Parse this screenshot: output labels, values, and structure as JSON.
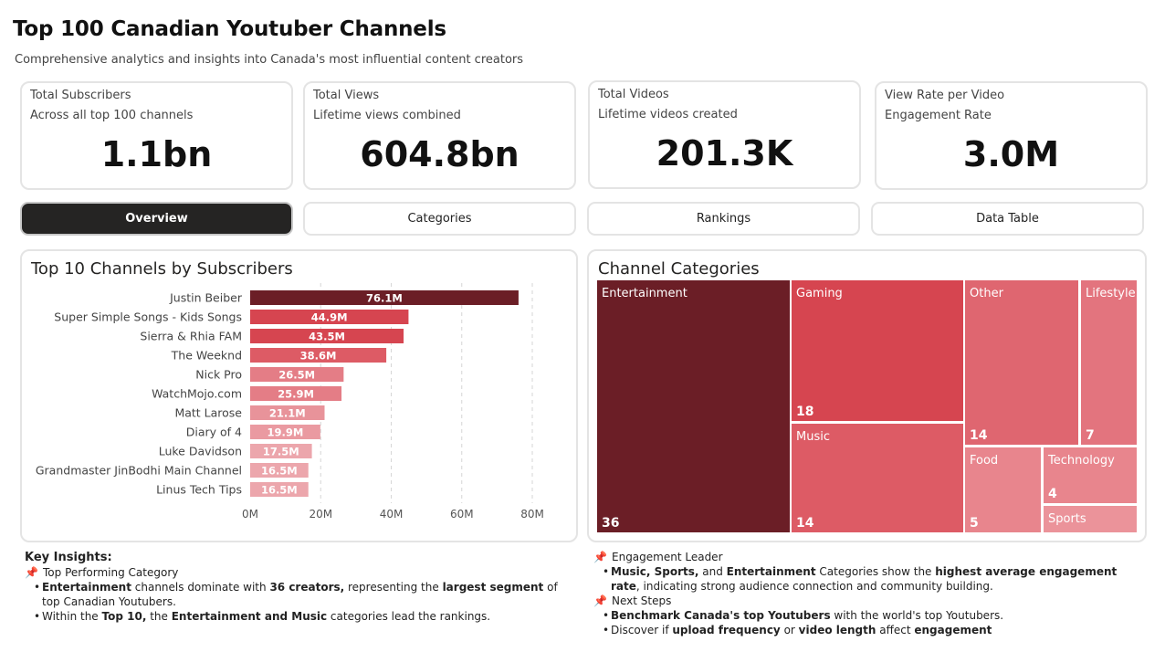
{
  "header": {
    "title": "Top 100 Canadian Youtuber Channels",
    "subtitle": "Comprehensive analytics and insights into Canada's most influential content creators"
  },
  "kpis": [
    {
      "label": "Total Subscribers",
      "sub": "Across all top 100 channels",
      "value": "1.1bn"
    },
    {
      "label": "Total Views",
      "sub": "Lifetime views combined",
      "value": "604.8bn"
    },
    {
      "label": "Total Videos",
      "sub": "Lifetime videos created",
      "value": "201.3K"
    },
    {
      "label": "View Rate per Video",
      "sub": "Engagement Rate",
      "value": "3.0M"
    }
  ],
  "tabs": [
    {
      "label": "Overview",
      "active": true
    },
    {
      "label": "Categories",
      "active": false
    },
    {
      "label": "Rankings",
      "active": false
    },
    {
      "label": "Data Table",
      "active": false
    }
  ],
  "bar_panel": {
    "title": "Top 10 Channels by Subscribers"
  },
  "treemap_panel": {
    "title": "Channel Categories"
  },
  "chart_data": [
    {
      "type": "bar",
      "orientation": "horizontal",
      "title": "Top 10 Channels by Subscribers",
      "categories": [
        "Justin Beiber",
        "Super Simple Songs - Kids Songs",
        "Sierra & Rhia FAM",
        "The Weeknd",
        "Nick Pro",
        "WatchMojo.com",
        "Matt Larose",
        "Diary of 4",
        "Luke Davidson",
        "Grandmaster JinBodhi Main Channel",
        "Linus Tech Tips"
      ],
      "values": [
        76.1,
        44.9,
        43.5,
        38.6,
        26.5,
        25.9,
        21.1,
        19.9,
        17.5,
        16.5,
        16.5
      ],
      "value_labels": [
        "76.1M",
        "44.9M",
        "43.5M",
        "38.6M",
        "26.5M",
        "25.9M",
        "21.1M",
        "19.9M",
        "17.5M",
        "16.5M",
        "16.5M"
      ],
      "unit": "M",
      "xlim": [
        0,
        80
      ],
      "xticks": [
        0,
        20,
        40,
        60,
        80
      ],
      "xtick_labels": [
        "0M",
        "20M",
        "40M",
        "60M",
        "80M"
      ],
      "grid": "vertical dashed",
      "colors": [
        "#6b1e26",
        "#d64550",
        "#d64550",
        "#dd5b65",
        "#e47d86",
        "#e47d86",
        "#e8939a",
        "#ea9aa1",
        "#eca6ac",
        "#eca6ac",
        "#eca6ac"
      ]
    },
    {
      "type": "treemap",
      "title": "Channel Categories",
      "items": [
        {
          "name": "Entertainment",
          "value": 36,
          "color": "#6b1e26"
        },
        {
          "name": "Gaming",
          "value": 18,
          "color": "#d64550"
        },
        {
          "name": "Music",
          "value": 14,
          "color": "#dd5b65"
        },
        {
          "name": "Other",
          "value": 14,
          "color": "#df6670"
        },
        {
          "name": "Lifestyle",
          "value": 7,
          "color": "#e3747e"
        },
        {
          "name": "Food",
          "value": 5,
          "color": "#e8858d"
        },
        {
          "name": "Technology",
          "value": 4,
          "color": "#e8858d"
        },
        {
          "name": "Sports",
          "value": null,
          "color": "#eb939a"
        }
      ]
    }
  ],
  "insights_left": {
    "heading": "Key Insights:",
    "section_title": "Top Performing Category",
    "bullets": [
      [
        {
          "t": "Entertainment",
          "b": true
        },
        {
          "t": " channels dominate with ",
          "b": false
        },
        {
          "t": "36 creators,",
          "b": true
        },
        {
          "t": " representing the ",
          "b": false
        },
        {
          "t": "largest segment",
          "b": true
        },
        {
          "t": " of top Canadian Youtubers.",
          "b": false
        }
      ],
      [
        {
          "t": "Within the ",
          "b": false
        },
        {
          "t": "Top 10,",
          "b": true
        },
        {
          "t": " the ",
          "b": false
        },
        {
          "t": "Entertainment and Music",
          "b": true
        },
        {
          "t": " categories lead the rankings.",
          "b": false
        }
      ]
    ]
  },
  "insights_right": {
    "sections": [
      {
        "title": "Engagement Leader",
        "bullets": [
          [
            {
              "t": "Music, Sports,",
              "b": true
            },
            {
              "t": " and ",
              "b": false
            },
            {
              "t": "Entertainment",
              "b": true
            },
            {
              "t": " Categories show the ",
              "b": false
            },
            {
              "t": "highest average engagement rate",
              "b": true
            },
            {
              "t": ", indicating strong audience connection and community building.",
              "b": false
            }
          ]
        ]
      },
      {
        "title": "Next Steps",
        "bullets": [
          [
            {
              "t": "Benchmark Canada's top Youtubers",
              "b": true
            },
            {
              "t": " with the world's top Youtubers.",
              "b": false
            }
          ],
          [
            {
              "t": "Discover if ",
              "b": false
            },
            {
              "t": "upload frequency",
              "b": true
            },
            {
              "t": " or ",
              "b": false
            },
            {
              "t": "video length",
              "b": true
            },
            {
              "t": " affect ",
              "b": false
            },
            {
              "t": "engagement",
              "b": true
            }
          ]
        ]
      }
    ]
  }
}
